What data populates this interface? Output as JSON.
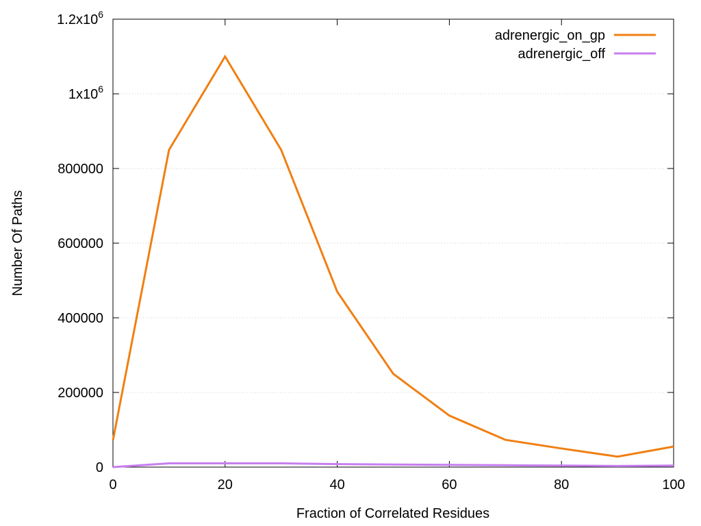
{
  "chart_data": {
    "type": "line",
    "xlabel": "Fraction of Correlated Residues",
    "ylabel": "Number Of Paths",
    "xlim": [
      0,
      100
    ],
    "ylim": [
      0,
      1200000
    ],
    "grid": true,
    "legend_position": "top-right",
    "x_ticks": [
      {
        "value": 0,
        "label": "0"
      },
      {
        "value": 20,
        "label": "20"
      },
      {
        "value": 40,
        "label": "40"
      },
      {
        "value": 60,
        "label": "60"
      },
      {
        "value": 80,
        "label": "80"
      },
      {
        "value": 100,
        "label": "100"
      }
    ],
    "y_ticks": [
      {
        "value": 0,
        "label": "0"
      },
      {
        "value": 200000,
        "label": "200000"
      },
      {
        "value": 400000,
        "label": "400000"
      },
      {
        "value": 600000,
        "label": "600000"
      },
      {
        "value": 800000,
        "label": "800000"
      },
      {
        "value": 1000000,
        "label": "1x10",
        "sup": "6"
      },
      {
        "value": 1200000,
        "label": "1.2x10",
        "sup": "6"
      }
    ],
    "series": [
      {
        "name": "adrenergic_on_gp",
        "color": "#f07f12",
        "x": [
          0,
          10,
          20,
          30,
          40,
          50,
          60,
          70,
          80,
          90,
          100
        ],
        "y": [
          72000,
          850000,
          1100000,
          850000,
          470000,
          250000,
          138000,
          73000,
          50000,
          28000,
          55000
        ]
      },
      {
        "name": "adrenergic_off",
        "color": "#c77ef0",
        "x": [
          0,
          10,
          20,
          30,
          40,
          50,
          60,
          70,
          80,
          90,
          100
        ],
        "y": [
          0,
          10000,
          10000,
          10000,
          8000,
          7000,
          6000,
          5000,
          4000,
          3000,
          4000
        ]
      }
    ]
  }
}
